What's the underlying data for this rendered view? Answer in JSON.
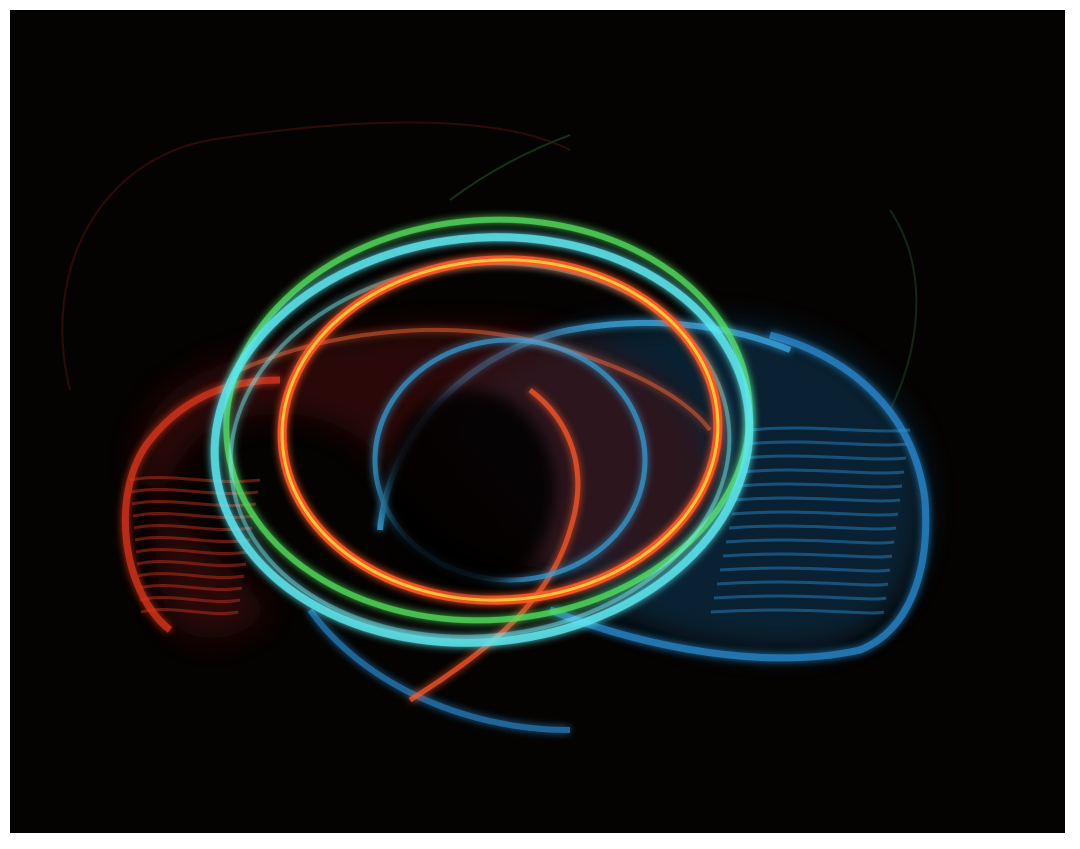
{
  "image": {
    "subject": "light-painting-rings",
    "background_color": "#050302",
    "colors": {
      "orange_red": "#ff5a2a",
      "deep_red": "#d8361c",
      "cyan": "#5fe8f0",
      "blue": "#2a8fd8",
      "green": "#55e060",
      "yellow": "#ffd23a"
    }
  }
}
